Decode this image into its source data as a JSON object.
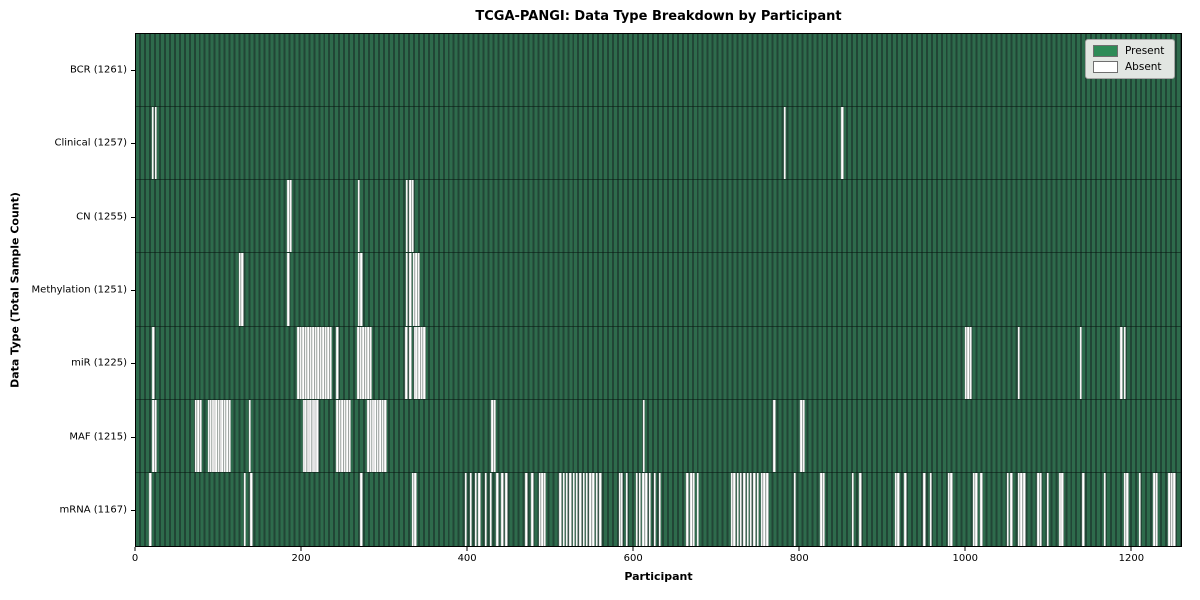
{
  "chart_data": {
    "type": "heatmap",
    "title": "TCGA-PANGI: Data Type Breakdown by Participant",
    "xlabel": "Participant",
    "ylabel": "Data Type (Total Sample Count)",
    "x_ticks": [
      0,
      200,
      400,
      600,
      800,
      1000,
      1200
    ],
    "x_range": [
      0,
      1261
    ],
    "total_participants": 1261,
    "grid": false,
    "legend_position": "upper right",
    "legend": [
      {
        "label": "Present",
        "color": "#2e8b57"
      },
      {
        "label": "Absent",
        "color": "#ffffff"
      }
    ],
    "rows": [
      {
        "label": "BCR (1261)",
        "data_type": "BCR",
        "present_count": 1261,
        "absent_participants": []
      },
      {
        "label": "Clinical (1257)",
        "data_type": "Clinical",
        "present_count": 1257,
        "absent_participants": [
          20,
          24,
          783,
          852
        ]
      },
      {
        "label": "CN (1255)",
        "data_type": "CN",
        "present_count": 1255,
        "absent_participants": [
          184,
          187,
          269,
          327,
          331,
          334
        ]
      },
      {
        "label": "Methylation (1251)",
        "data_type": "Methylation",
        "present_count": 1251,
        "absent_participants": [
          125,
          128,
          184,
          269,
          272,
          327,
          331,
          335,
          338,
          341
        ]
      },
      {
        "label": "miR (1225)",
        "data_type": "miR",
        "present_count": 1225,
        "absent_participants": [
          21,
          196,
          199,
          202,
          205,
          208,
          211,
          214,
          217,
          220,
          223,
          226,
          229,
          232,
          235,
          243,
          268,
          271,
          274,
          277,
          280,
          283,
          326,
          331,
          337,
          339,
          342,
          345,
          348,
          1001,
          1004,
          1007,
          1065,
          1140,
          1189,
          1193
        ]
      },
      {
        "label": "MAF (1215)",
        "data_type": "MAF",
        "present_count": 1215,
        "absent_participants": [
          21,
          24,
          72,
          75,
          78,
          88,
          90,
          93,
          95,
          97,
          100,
          102,
          104,
          107,
          110,
          113,
          137,
          203,
          205,
          207,
          209,
          211,
          213,
          215,
          217,
          219,
          243,
          246,
          249,
          252,
          255,
          258,
          280,
          283,
          286,
          289,
          292,
          295,
          298,
          301,
          430,
          433,
          613,
          770,
          803,
          806
        ]
      },
      {
        "label": "mRNA (1167)",
        "data_type": "mRNA",
        "present_count": 1167,
        "absent_participants": [
          17,
          131,
          139,
          272,
          334,
          337,
          398,
          404,
          410,
          414,
          422,
          428,
          436,
          442,
          447,
          471,
          478,
          487,
          490,
          493,
          512,
          516,
          520,
          524,
          528,
          532,
          536,
          540,
          544,
          548,
          552,
          556,
          560,
          584,
          586,
          592,
          604,
          608,
          612,
          616,
          620,
          626,
          632,
          665,
          670,
          673,
          678,
          719,
          722,
          726,
          730,
          734,
          738,
          742,
          746,
          750,
          755,
          758,
          762,
          795,
          827,
          830,
          865,
          874,
          917,
          920,
          928,
          951,
          959,
          981,
          984,
          1011,
          1014,
          1020,
          1052,
          1056,
          1065,
          1068,
          1072,
          1089,
          1092,
          1100,
          1115,
          1118,
          1143,
          1169,
          1193,
          1196,
          1211,
          1229,
          1232,
          1247,
          1250,
          1253
        ]
      }
    ],
    "colors": {
      "present": "#2e8b57",
      "bar_stripe_light": "#2e6b4c",
      "bar_stripe_dark": "#214636",
      "absent": "#ffffff",
      "absent_edge": "#8f8f8f",
      "legend_bg": "#e2e6e2",
      "legend_border": "#a6a6a6",
      "plot_border": "#000000"
    }
  }
}
